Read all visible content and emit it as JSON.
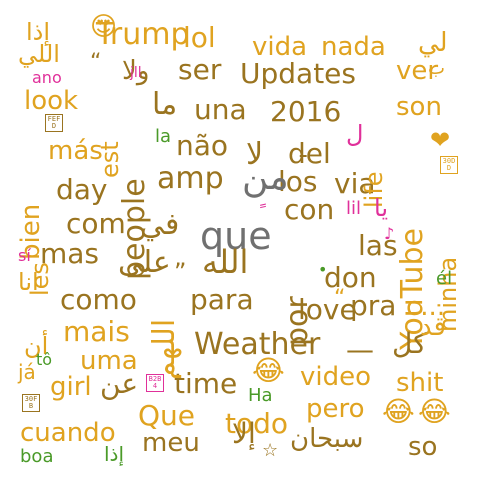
{
  "colors": {
    "gray": "#707070",
    "brown": "#9a7420",
    "gold": "#e0a320",
    "magenta": "#e0309a",
    "green": "#4a9a28"
  },
  "words": [
    {
      "text": "que",
      "color": "gray"
    },
    {
      "text": "الله",
      "color": "brown"
    },
    {
      "text": "para",
      "color": "brown"
    },
    {
      "text": "Weather",
      "color": "brown"
    },
    {
      "text": "amp",
      "color": "brown"
    },
    {
      "text": "con",
      "color": "brown"
    },
    {
      "text": "por",
      "color": "brown"
    },
    {
      "text": "YouTube",
      "color": "gold"
    },
    {
      "text": "Updates",
      "color": "brown"
    },
    {
      "text": "people",
      "color": "brown"
    },
    {
      "text": "los",
      "color": "brown"
    },
    {
      "text": "via",
      "color": "brown"
    },
    {
      "text": "love",
      "color": "brown"
    },
    {
      "text": "pra",
      "color": "brown"
    },
    {
      "text": "time",
      "color": "brown"
    },
    {
      "text": "Trump",
      "color": "gold"
    },
    {
      "text": "lol",
      "color": "gold"
    },
    {
      "text": "vida",
      "color": "gold"
    },
    {
      "text": "nada",
      "color": "gold"
    },
    {
      "text": "ser",
      "color": "brown"
    },
    {
      "text": "una",
      "color": "brown"
    },
    {
      "text": "2016",
      "color": "brown"
    },
    {
      "text": "não",
      "color": "brown"
    },
    {
      "text": "del",
      "color": "brown"
    },
    {
      "text": "day",
      "color": "brown"
    },
    {
      "text": "com",
      "color": "brown"
    },
    {
      "text": "mas",
      "color": "brown"
    },
    {
      "text": "como",
      "color": "brown"
    },
    {
      "text": "las",
      "color": "brown"
    },
    {
      "text": "don",
      "color": "brown"
    },
    {
      "text": "mais",
      "color": "gold"
    },
    {
      "text": "uma",
      "color": "gold"
    },
    {
      "text": "girl",
      "color": "gold"
    },
    {
      "text": "video",
      "color": "gold"
    },
    {
      "text": "shit",
      "color": "gold"
    },
    {
      "text": "Que",
      "color": "gold"
    },
    {
      "text": "todo",
      "color": "gold"
    },
    {
      "text": "pero",
      "color": "gold"
    },
    {
      "text": "cuando",
      "color": "gold"
    },
    {
      "text": "meu",
      "color": "brown"
    },
    {
      "text": "so",
      "color": "brown"
    },
    {
      "text": "look",
      "color": "gold"
    },
    {
      "text": "más",
      "color": "gold"
    },
    {
      "text": "bien",
      "color": "gold"
    },
    {
      "text": "son",
      "color": "gold"
    },
    {
      "text": "ver",
      "color": "gold"
    },
    {
      "text": "life",
      "color": "gold"
    },
    {
      "text": "les",
      "color": "gold"
    },
    {
      "text": "minha",
      "color": "gold"
    },
    {
      "text": "est",
      "color": "gold"
    },
    {
      "text": "على",
      "color": "brown"
    },
    {
      "text": "في",
      "color": "brown"
    },
    {
      "text": "من",
      "color": "gray"
    },
    {
      "text": "ما",
      "color": "brown"
    },
    {
      "text": "لا",
      "color": "brown"
    },
    {
      "text": "ولا",
      "color": "brown"
    },
    {
      "text": "عن",
      "color": "brown"
    },
    {
      "text": "كل",
      "color": "brown"
    },
    {
      "text": "إلا",
      "color": "brown"
    },
    {
      "text": "سبحان",
      "color": "brown"
    },
    {
      "text": "اللهم",
      "color": "gold"
    },
    {
      "text": "إذا",
      "color": "gold"
    },
    {
      "text": "اللي",
      "color": "gold"
    },
    {
      "text": "لي",
      "color": "gold"
    },
    {
      "text": "انا",
      "color": "gold"
    },
    {
      "text": "أن",
      "color": "gold"
    },
    {
      "text": "قد",
      "color": "gold"
    },
    {
      "text": "يا",
      "color": "magenta"
    },
    {
      "text": "إذا",
      "color": "green"
    },
    {
      "text": "ano",
      "color": "magenta"
    },
    {
      "text": "jll",
      "color": "magenta"
    },
    {
      "text": "la",
      "color": "green"
    },
    {
      "text": "lil",
      "color": "magenta"
    },
    {
      "text": "sí",
      "color": "magenta"
    },
    {
      "text": "él",
      "color": "green"
    },
    {
      "text": "tô",
      "color": "green"
    },
    {
      "text": "já",
      "color": "gold"
    },
    {
      "text": "boa",
      "color": "green"
    },
    {
      "text": "Ha",
      "color": "green"
    },
    {
      "text": "c...",
      "color": "gold"
    },
    {
      "text": "—",
      "color": "brown"
    },
    {
      "text": "“",
      "color": "brown"
    },
    {
      "text": "”",
      "color": "brown"
    },
    {
      "text": "“",
      "color": "gold"
    },
    {
      "text": "ـ",
      "color": "brown"
    },
    {
      "text": "ل",
      "color": "magenta"
    },
    {
      "text": "ب",
      "color": "gold"
    },
    {
      "text": "ً",
      "color": "magenta"
    },
    {
      "text": "😍",
      "color": "gold",
      "icon": "heart-eyes-emoji"
    },
    {
      "text": "😂",
      "color": "gold",
      "icon": "tears-of-joy-emoji"
    },
    {
      "text": "😂",
      "color": "gold",
      "icon": "tears-of-joy-emoji"
    },
    {
      "text": "😂",
      "color": "gold",
      "icon": "tears-of-joy-emoji"
    },
    {
      "text": "❤",
      "color": "gold",
      "icon": "heart-icon"
    },
    {
      "text": "☆",
      "color": "brown",
      "icon": "star-icon"
    },
    {
      "text": "♪",
      "color": "magenta",
      "icon": "music-note-icon"
    },
    {
      "text": "•",
      "color": "green",
      "icon": "dot-icon"
    },
    {
      "text": "FEFD",
      "color": "brown",
      "icon": "missing-glyph-box"
    },
    {
      "text": "30DD",
      "color": "gold",
      "icon": "missing-glyph-box"
    },
    {
      "text": "B2B4",
      "color": "magenta",
      "icon": "missing-glyph-box"
    },
    {
      "text": "30FB",
      "color": "brown",
      "icon": "missing-glyph-box"
    }
  ]
}
